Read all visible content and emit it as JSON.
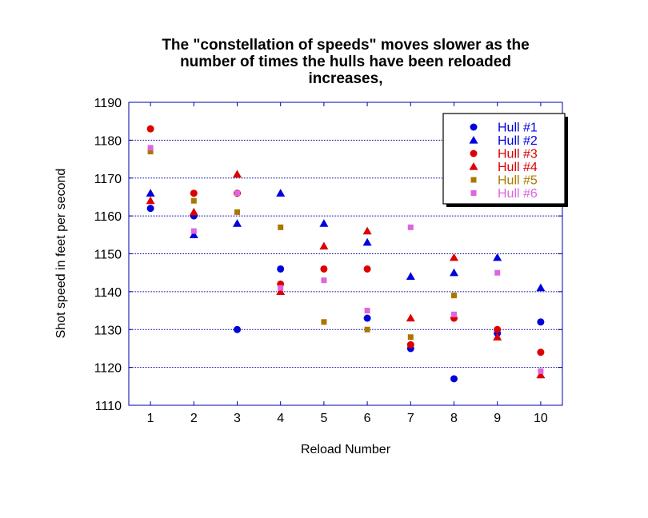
{
  "chart_data": {
    "type": "scatter",
    "title_lines": [
      "The \"constellation of speeds\" moves slower as the",
      "number of times the hulls have been reloaded",
      "increases,"
    ],
    "xlabel": "Reload Number",
    "ylabel": "Shot speed in feet per second",
    "x": [
      1,
      2,
      3,
      4,
      5,
      6,
      7,
      8,
      9,
      10
    ],
    "x_ticks": [
      "1",
      "2",
      "3",
      "4",
      "5",
      "6",
      "7",
      "8",
      "9",
      "10"
    ],
    "y_ticks": [
      "1110",
      "1120",
      "1130",
      "1140",
      "1150",
      "1160",
      "1170",
      "1180",
      "1190"
    ],
    "ylim": [
      1110,
      1190
    ],
    "xlim": [
      0.5,
      10.5
    ],
    "grid": "horizontal dotted",
    "legend_position": "top-right",
    "series": [
      {
        "name": "Hull #1",
        "color": "#0000dd",
        "marker": "circle",
        "values": [
          1162,
          1160,
          1130,
          1146,
          null,
          1133,
          1125,
          1117,
          1129,
          1132
        ]
      },
      {
        "name": "Hull #2",
        "color": "#0000dd",
        "marker": "triangle",
        "values": [
          1166,
          1155,
          1158,
          1166,
          1158,
          1153,
          1144,
          1145,
          1149,
          1141
        ]
      },
      {
        "name": "Hull #3",
        "color": "#dd0000",
        "marker": "circle",
        "values": [
          1183,
          1166,
          1166,
          1142,
          1146,
          1146,
          1126,
          1133,
          1130,
          1124
        ]
      },
      {
        "name": "Hull #4",
        "color": "#dd0000",
        "marker": "triangle",
        "values": [
          1164,
          1161,
          1171,
          1140,
          1152,
          1156,
          1133,
          1149,
          1128,
          1118
        ]
      },
      {
        "name": "Hull #5",
        "color": "#aa7700",
        "marker": "square",
        "values": [
          1177,
          1164,
          1161,
          1157,
          1132,
          1130,
          1128,
          1139,
          null,
          null
        ]
      },
      {
        "name": "Hull #6",
        "color": "#dd66dd",
        "marker": "square",
        "values": [
          1178,
          1156,
          1166,
          1141,
          1143,
          1135,
          1157,
          1134,
          1145,
          1119
        ]
      }
    ]
  }
}
